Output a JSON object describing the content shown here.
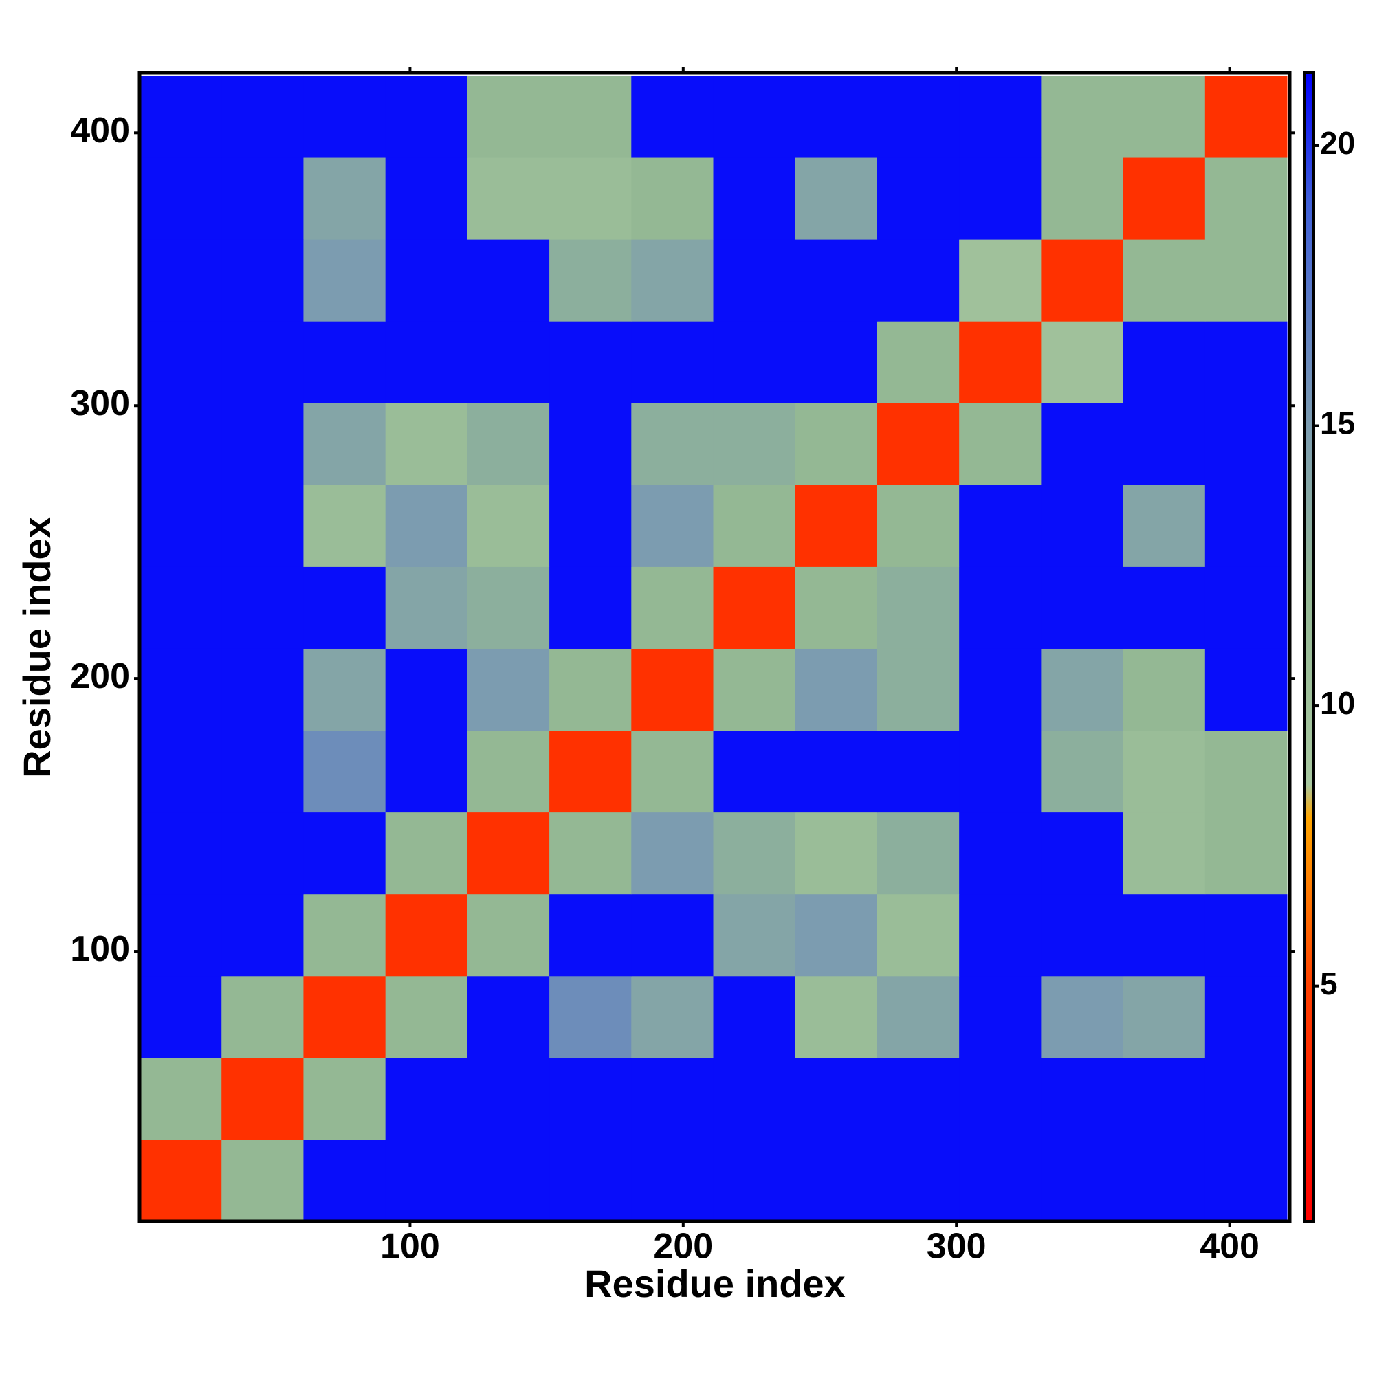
{
  "chart_data": {
    "type": "heatmap",
    "xlabel": "Residue index",
    "ylabel": "Residue index",
    "x_bins": [
      1,
      31,
      61,
      91,
      121,
      151,
      181,
      211,
      241,
      271,
      301,
      331,
      361,
      391,
      421
    ],
    "y_bins": [
      1,
      31,
      61,
      91,
      121,
      151,
      181,
      211,
      241,
      271,
      301,
      331,
      361,
      391,
      421
    ],
    "values": [
      [
        4,
        12,
        21,
        21,
        21,
        21,
        21,
        21,
        21,
        21,
        21,
        21,
        21,
        21
      ],
      [
        12,
        4,
        12,
        21,
        21,
        21,
        21,
        21,
        21,
        21,
        21,
        21,
        21,
        21
      ],
      [
        21,
        12,
        4,
        12,
        21,
        16,
        14,
        21,
        11,
        14,
        21,
        15,
        14,
        21
      ],
      [
        21,
        21,
        12,
        4,
        12,
        21,
        21,
        14,
        15,
        11,
        21,
        21,
        21,
        21
      ],
      [
        21,
        21,
        21,
        12,
        4,
        12,
        15,
        13,
        11,
        13,
        21,
        21,
        11,
        12
      ],
      [
        21,
        21,
        16,
        21,
        12,
        4,
        12,
        21,
        21,
        21,
        21,
        13,
        11,
        12
      ],
      [
        21,
        21,
        14,
        21,
        15,
        12,
        4,
        12,
        15,
        13,
        21,
        14,
        12,
        21
      ],
      [
        21,
        21,
        21,
        14,
        13,
        21,
        12,
        4,
        12,
        13,
        21,
        21,
        21,
        21
      ],
      [
        21,
        21,
        11,
        15,
        11,
        21,
        15,
        12,
        4,
        12,
        21,
        21,
        14,
        21
      ],
      [
        21,
        21,
        14,
        11,
        13,
        21,
        13,
        13,
        12,
        4,
        12,
        21,
        21,
        21
      ],
      [
        21,
        21,
        21,
        21,
        21,
        21,
        21,
        21,
        21,
        12,
        4,
        10,
        21,
        21
      ],
      [
        21,
        21,
        15,
        21,
        21,
        13,
        14,
        21,
        21,
        21,
        10,
        4,
        12,
        12
      ],
      [
        21,
        21,
        14,
        21,
        11,
        11,
        12,
        21,
        14,
        21,
        21,
        12,
        4,
        12
      ],
      [
        21,
        21,
        21,
        21,
        12,
        12,
        21,
        21,
        21,
        21,
        21,
        12,
        12,
        4
      ]
    ],
    "xlim": [
      1,
      422
    ],
    "ylim": [
      1,
      422
    ],
    "xticks": [
      100,
      200,
      300,
      400
    ],
    "yticks": [
      100,
      200,
      300,
      400
    ],
    "colorbar": {
      "lim": [
        0.8,
        21.3
      ],
      "ticks": [
        5,
        10,
        15,
        20
      ]
    },
    "colorscale": [
      [
        0.8,
        "#ff0000"
      ],
      [
        5,
        "#ff4000"
      ],
      [
        8,
        "#ffa500"
      ],
      [
        8.6,
        "#a8c8a0"
      ],
      [
        12,
        "#94b894"
      ],
      [
        15,
        "#7c9cb0"
      ],
      [
        19,
        "#4060d8"
      ],
      [
        21.3,
        "#0000ff"
      ]
    ]
  }
}
